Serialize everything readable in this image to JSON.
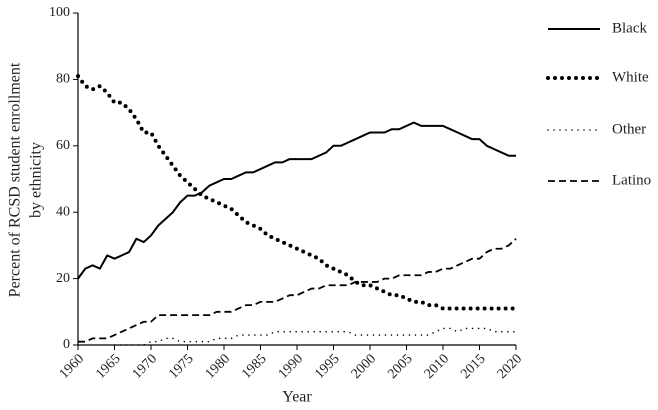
{
  "chart_data": {
    "type": "line",
    "xlabel": "Year",
    "ylabel": [
      "Percent of RCSD student enrollment",
      "by ethnicity"
    ],
    "x": [
      1960,
      1961,
      1962,
      1963,
      1964,
      1965,
      1966,
      1967,
      1968,
      1969,
      1970,
      1971,
      1972,
      1973,
      1974,
      1975,
      1976,
      1977,
      1978,
      1979,
      1980,
      1981,
      1982,
      1983,
      1984,
      1985,
      1986,
      1987,
      1988,
      1989,
      1990,
      1991,
      1992,
      1993,
      1994,
      1995,
      1996,
      1997,
      1998,
      1999,
      2000,
      2001,
      2002,
      2003,
      2004,
      2005,
      2006,
      2007,
      2008,
      2009,
      2010,
      2011,
      2012,
      2013,
      2014,
      2015,
      2016,
      2017,
      2018,
      2019,
      2020
    ],
    "xlim": [
      1960,
      2020
    ],
    "xticks": [
      1960,
      1965,
      1970,
      1975,
      1980,
      1985,
      1990,
      1995,
      2000,
      2005,
      2010,
      2015,
      2020
    ],
    "ylim": [
      0,
      100
    ],
    "yticks": [
      0,
      20,
      40,
      60,
      80,
      100
    ],
    "grid": false,
    "legend": "right",
    "series": [
      {
        "name": "Black",
        "color": "#000000",
        "style": "solid",
        "values": [
          20,
          23,
          24,
          23,
          27,
          26,
          27,
          28,
          32,
          31,
          33,
          36,
          38,
          40,
          43,
          45,
          45,
          46,
          48,
          49,
          50,
          50,
          51,
          52,
          52,
          53,
          54,
          55,
          55,
          56,
          56,
          56,
          56,
          57,
          58,
          60,
          60,
          61,
          62,
          63,
          64,
          64,
          64,
          65,
          65,
          66,
          67,
          66,
          66,
          66,
          66,
          65,
          64,
          63,
          62,
          62,
          60,
          59,
          58,
          57,
          57
        ]
      },
      {
        "name": "White",
        "color": "#000000",
        "style": "dotted",
        "values": [
          81,
          78,
          77,
          78,
          76,
          73,
          73,
          71,
          68,
          64,
          64,
          60,
          57,
          54,
          51,
          49,
          47,
          45,
          44,
          43,
          42,
          41,
          39,
          37,
          36,
          35,
          33,
          32,
          31,
          30,
          29,
          28,
          27,
          26,
          24,
          23,
          22,
          21,
          19,
          18,
          18,
          17,
          16,
          15,
          15,
          14,
          13,
          13,
          12,
          12,
          11,
          11,
          11,
          11,
          11,
          11,
          11,
          11,
          11,
          11,
          11
        ]
      },
      {
        "name": "Other",
        "color": "#000000",
        "style": "fine-dotted",
        "values": [
          null,
          null,
          null,
          null,
          null,
          0,
          0,
          0,
          0,
          0,
          1,
          1,
          2,
          2,
          1,
          1,
          1,
          1,
          1,
          2,
          2,
          2,
          3,
          3,
          3,
          3,
          3,
          4,
          4,
          4,
          4,
          4,
          4,
          4,
          4,
          4,
          4,
          4,
          3,
          3,
          3,
          3,
          3,
          3,
          3,
          3,
          3,
          3,
          3,
          4,
          5,
          5,
          4,
          5,
          5,
          5,
          5,
          4,
          4,
          4,
          4
        ]
      },
      {
        "name": "Latino",
        "color": "#000000",
        "style": "dashed",
        "values": [
          1,
          1,
          2,
          2,
          2,
          3,
          4,
          5,
          6,
          7,
          7,
          9,
          9,
          9,
          9,
          9,
          9,
          9,
          9,
          10,
          10,
          10,
          11,
          12,
          12,
          13,
          13,
          13,
          14,
          15,
          15,
          16,
          17,
          17,
          18,
          18,
          18,
          18,
          19,
          19,
          19,
          19,
          20,
          20,
          21,
          21,
          21,
          21,
          22,
          22,
          23,
          23,
          24,
          25,
          26,
          26,
          28,
          29,
          29,
          30,
          32
        ]
      }
    ]
  }
}
